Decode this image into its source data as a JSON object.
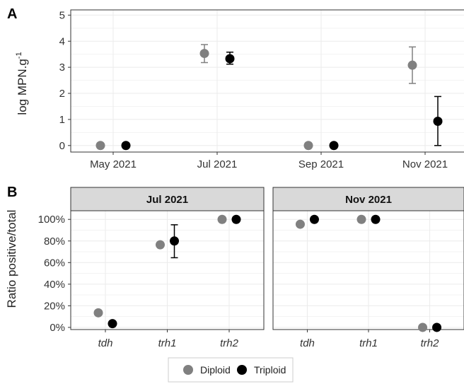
{
  "legend": {
    "items": [
      {
        "label": "Diploid",
        "color": "#808080"
      },
      {
        "label": "Triploid",
        "color": "#000000"
      }
    ]
  },
  "chart_data": [
    {
      "panel": "A",
      "type": "scatter",
      "ylabel": "log MPN.g",
      "ylabel_superscript": "-1",
      "ylim": [
        -0.25,
        5.2
      ],
      "yticks": [
        0,
        1,
        2,
        3,
        4,
        5
      ],
      "categories": [
        "May 2021",
        "Jul 2021",
        "Sep 2021",
        "Nov 2021"
      ],
      "grid": true,
      "series": [
        {
          "name": "Diploid",
          "color": "#808080",
          "values": [
            0,
            3.53,
            0,
            3.08
          ],
          "err_low": [
            null,
            3.18,
            null,
            2.38
          ],
          "err_high": [
            null,
            3.87,
            null,
            3.78
          ]
        },
        {
          "name": "Triploid",
          "color": "#000000",
          "values": [
            0,
            3.33,
            0,
            0.93
          ],
          "err_low": [
            null,
            3.12,
            null,
            0
          ],
          "err_high": [
            null,
            3.58,
            null,
            1.88
          ]
        }
      ]
    },
    {
      "panel": "B",
      "type": "scatter",
      "ylabel": "Ratio positive/total",
      "ylim": [
        -2,
        108
      ],
      "yticks": [
        0,
        20,
        40,
        60,
        80,
        100
      ],
      "ytick_labels": [
        "0%",
        "20%",
        "40%",
        "60%",
        "80%",
        "100%"
      ],
      "grid": true,
      "facets": [
        {
          "label": "Jul 2021",
          "categories": [
            "tdh",
            "trh1",
            "trh2"
          ],
          "series": [
            {
              "name": "Diploid",
              "color": "#808080",
              "values": [
                13.5,
                76.5,
                100
              ],
              "err_low": [
                null,
                null,
                null
              ],
              "err_high": [
                null,
                null,
                null
              ]
            },
            {
              "name": "Triploid",
              "color": "#000000",
              "values": [
                3.5,
                80,
                100
              ],
              "err_low": [
                null,
                64.5,
                null
              ],
              "err_high": [
                null,
                95,
                null
              ]
            }
          ]
        },
        {
          "label": "Nov 2021",
          "categories": [
            "tdh",
            "trh1",
            "trh2"
          ],
          "series": [
            {
              "name": "Diploid",
              "color": "#808080",
              "values": [
                95.5,
                100,
                0
              ],
              "err_low": [
                null,
                null,
                null
              ],
              "err_high": [
                null,
                null,
                null
              ]
            },
            {
              "name": "Triploid",
              "color": "#000000",
              "values": [
                100,
                100,
                0
              ],
              "err_low": [
                null,
                null,
                null
              ],
              "err_high": [
                null,
                null,
                null
              ]
            }
          ]
        }
      ]
    }
  ]
}
